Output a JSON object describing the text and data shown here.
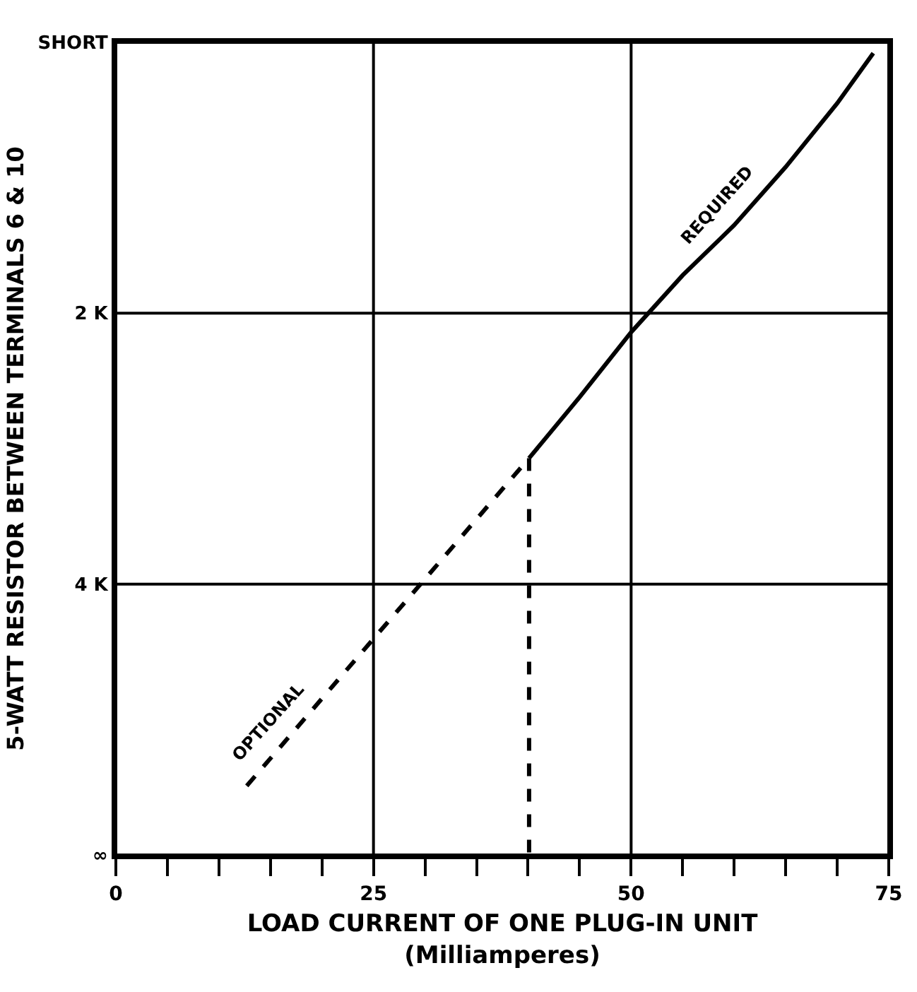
{
  "chart_data": {
    "type": "line",
    "xlabel": "LOAD CURRENT OF ONE PLUG-IN UNIT\n(Milliamperes)",
    "ylabel": "5-WATT RESISTOR BETWEEN TERMINALS 6 & 10",
    "series": [
      {
        "name": "REQUIRED",
        "color": "#000000",
        "line_style": "solid",
        "x": [
          40.1,
          45,
          50,
          55,
          60,
          65,
          70,
          73.5
        ],
        "values": [
          3.07,
          2.62,
          2.14,
          1.72,
          1.35,
          0.92,
          0.45,
          0.08
        ]
      },
      {
        "name": "OPTIONAL",
        "color": "#000000",
        "line_style": "dashed",
        "x": [
          12.7,
          40.1
        ],
        "values": [
          5.49,
          3.07
        ]
      },
      {
        "color": "#000000",
        "line_style": "dashed",
        "x": [
          40.1,
          40.1
        ],
        "values": [
          3.07,
          6
        ]
      }
    ],
    "xlim": [
      0,
      75
    ],
    "xticks": [
      0,
      {
        "value": 5,
        "label": null
      },
      {
        "value": 10,
        "label": null
      },
      {
        "value": 15,
        "label": null
      },
      {
        "value": 20,
        "label": null
      },
      25,
      {
        "value": 30,
        "label": null
      },
      {
        "value": 35,
        "label": null
      },
      {
        "value": 40,
        "label": null
      },
      {
        "value": 45,
        "label": null
      },
      50,
      {
        "value": 55,
        "label": null
      },
      {
        "value": 60,
        "label": null
      },
      {
        "value": 65,
        "label": null
      },
      {
        "value": 70,
        "label": null
      },
      75
    ],
    "ylim": [
      6,
      0
    ],
    "yticks": [
      {
        "value": 0,
        "label": "SHORT"
      },
      {
        "value": 2,
        "label": "2 K"
      },
      {
        "value": 4,
        "label": "4 K"
      },
      {
        "value": 6,
        "label": "∞"
      }
    ],
    "grid": true,
    "legend": false,
    "marker": "none"
  }
}
